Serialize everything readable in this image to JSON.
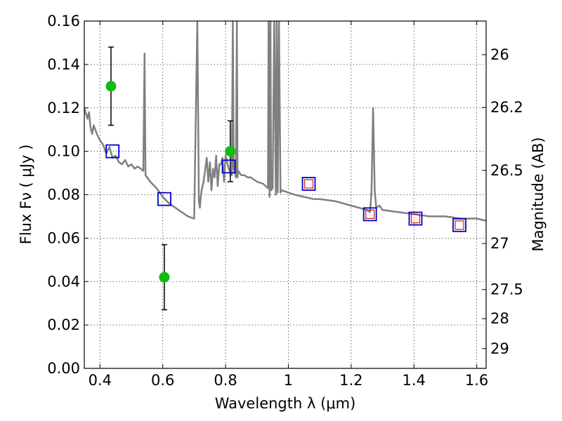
{
  "chart_data": {
    "type": "scatter",
    "title": "",
    "xlabel": "Wavelength  λ (μm)",
    "ylabel": "Flux  Fν  ( μJy )",
    "y2label": "Magnitude (AB)",
    "xlim": [
      0.35,
      1.63
    ],
    "ylim": [
      0.0,
      0.16
    ],
    "xticks": [
      0.4,
      0.6,
      0.8,
      1.0,
      1.2,
      1.4,
      1.6
    ],
    "xtick_labels": [
      "0.4",
      "0.6",
      "0.8",
      "1",
      "1.2",
      "1.4",
      "1.6"
    ],
    "yticks": [
      0.0,
      0.02,
      0.04,
      0.06,
      0.08,
      0.1,
      0.12,
      0.14,
      0.16
    ],
    "ytick_labels": [
      "0.00",
      "0.02",
      "0.04",
      "0.06",
      "0.08",
      "0.10",
      "0.12",
      "0.14",
      "0.16"
    ],
    "y2_ticks": [
      {
        "label": "26",
        "flux": 0.1445
      },
      {
        "label": "26.2",
        "flux": 0.1202
      },
      {
        "label": "26.5",
        "flux": 0.0912
      },
      {
        "label": "27",
        "flux": 0.0575
      },
      {
        "label": "27.5",
        "flux": 0.0363
      },
      {
        "label": "28",
        "flux": 0.0229
      },
      {
        "label": "29",
        "flux": 0.0091
      }
    ],
    "grid": true,
    "colors": {
      "model": "#808080",
      "observed": "#11bb11",
      "errorbar": "#000000",
      "model_box": "#0000cc",
      "upper_box": "#dd2222"
    },
    "series": [
      {
        "kind": "line",
        "x": [
          0.35,
          0.36,
          0.365,
          0.37,
          0.375,
          0.38,
          0.39,
          0.4,
          0.41,
          0.42,
          0.43,
          0.44,
          0.45,
          0.46,
          0.47,
          0.48,
          0.49,
          0.5,
          0.51,
          0.52,
          0.53,
          0.538,
          0.542,
          0.545,
          0.55,
          0.56,
          0.58,
          0.6,
          0.62,
          0.65,
          0.68,
          0.7,
          0.71,
          0.715,
          0.718,
          0.722,
          0.725,
          0.73,
          0.74,
          0.745,
          0.75,
          0.755,
          0.76,
          0.765,
          0.77,
          0.775,
          0.78,
          0.785,
          0.79,
          0.795,
          0.8,
          0.81,
          0.82,
          0.823,
          0.826,
          0.83,
          0.833,
          0.836,
          0.838,
          0.84,
          0.85,
          0.86,
          0.87,
          0.88,
          0.9,
          0.92,
          0.935,
          0.937,
          0.94,
          0.943,
          0.945,
          0.95,
          0.955,
          0.96,
          0.963,
          0.966,
          0.97,
          0.975,
          0.98,
          1.0,
          1.02,
          1.05,
          1.08,
          1.1,
          1.15,
          1.2,
          1.25,
          1.26,
          1.265,
          1.27,
          1.275,
          1.28,
          1.29,
          1.3,
          1.35,
          1.4,
          1.45,
          1.5,
          1.55,
          1.6,
          1.63
        ],
        "y": [
          0.12,
          0.115,
          0.118,
          0.111,
          0.108,
          0.112,
          0.108,
          0.105,
          0.103,
          0.099,
          0.102,
          0.097,
          0.098,
          0.095,
          0.094,
          0.096,
          0.093,
          0.094,
          0.092,
          0.093,
          0.092,
          0.091,
          0.145,
          0.089,
          0.088,
          0.086,
          0.083,
          0.079,
          0.076,
          0.073,
          0.07,
          0.069,
          0.16,
          0.077,
          0.074,
          0.08,
          0.083,
          0.086,
          0.097,
          0.086,
          0.095,
          0.082,
          0.092,
          0.088,
          0.098,
          0.084,
          0.094,
          0.094,
          0.097,
          0.086,
          0.098,
          0.092,
          0.089,
          0.16,
          0.092,
          0.09,
          0.088,
          0.16,
          0.088,
          0.091,
          0.089,
          0.089,
          0.088,
          0.088,
          0.086,
          0.085,
          0.083,
          0.16,
          0.079,
          0.16,
          0.082,
          0.083,
          0.16,
          0.08,
          0.16,
          0.081,
          0.16,
          0.081,
          0.082,
          0.081,
          0.08,
          0.079,
          0.078,
          0.078,
          0.077,
          0.075,
          0.073,
          0.072,
          0.082,
          0.12,
          0.082,
          0.074,
          0.075,
          0.073,
          0.072,
          0.071,
          0.07,
          0.07,
          0.069,
          0.069,
          0.068
        ]
      },
      {
        "kind": "points_with_errors",
        "x": [
          0.435,
          0.605,
          0.815
        ],
        "y": [
          0.13,
          0.042,
          0.1
        ],
        "yerr": [
          0.018,
          0.015,
          0.014
        ]
      },
      {
        "kind": "model_photometry",
        "x": [
          0.44,
          0.605,
          0.81,
          1.065,
          1.26,
          1.405,
          1.545
        ],
        "y": [
          0.1,
          0.078,
          0.093,
          0.085,
          0.071,
          0.069,
          0.066
        ]
      },
      {
        "kind": "upper_limits",
        "x": [
          1.065,
          1.26,
          1.405,
          1.545
        ],
        "y": [
          0.085,
          0.071,
          0.069,
          0.066
        ]
      }
    ]
  }
}
